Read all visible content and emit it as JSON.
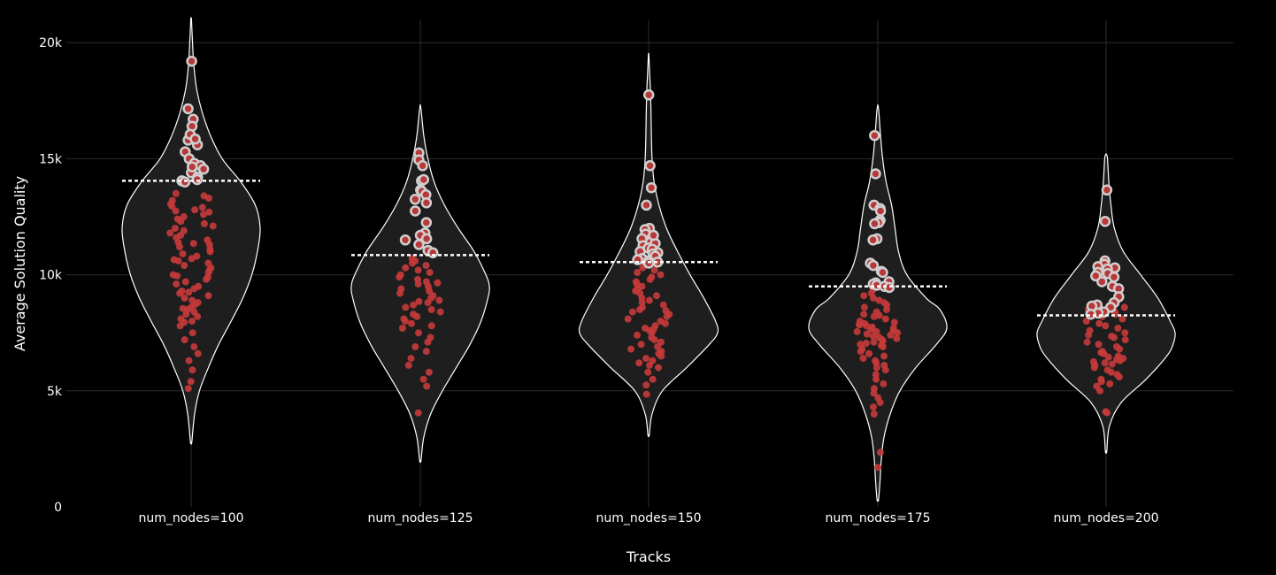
{
  "chart_data": {
    "type": "violin",
    "xlabel": "Tracks",
    "ylabel": "Average Solution Quality",
    "ylim": [
      0,
      21000
    ],
    "yticks": [
      {
        "value": 0,
        "label": "0"
      },
      {
        "value": 5000,
        "label": "5k"
      },
      {
        "value": 10000,
        "label": "10k"
      },
      {
        "value": 15000,
        "label": "15k"
      },
      {
        "value": 20000,
        "label": "20k"
      }
    ],
    "grid": true,
    "colors": {
      "background": "#000000",
      "violin_fill": "#1e1e1e",
      "violin_line": "#ffffff",
      "point": "#c73a3a",
      "point_outline": "#cfcfcf"
    },
    "categories": [
      "num_nodes=100",
      "num_nodes=125",
      "num_nodes=150",
      "num_nodes=175",
      "num_nodes=200"
    ],
    "violins": [
      {
        "category": "num_nodes=100",
        "threshold": 14050,
        "profile": [
          [
            2800,
            0.01
          ],
          [
            4000,
            0.05
          ],
          [
            5000,
            0.12
          ],
          [
            6000,
            0.25
          ],
          [
            7000,
            0.4
          ],
          [
            8000,
            0.58
          ],
          [
            9000,
            0.75
          ],
          [
            10000,
            0.88
          ],
          [
            11000,
            0.96
          ],
          [
            12000,
            1.0
          ],
          [
            13000,
            0.93
          ],
          [
            14000,
            0.72
          ],
          [
            15000,
            0.45
          ],
          [
            16000,
            0.28
          ],
          [
            17000,
            0.16
          ],
          [
            18000,
            0.08
          ],
          [
            19000,
            0.04
          ],
          [
            20000,
            0.02
          ],
          [
            21000,
            0.005
          ]
        ],
        "points_high": [
          19200,
          17150,
          16700,
          16400,
          15900,
          15800,
          15600,
          15300,
          15000,
          14800,
          14700,
          14550,
          14400,
          14200,
          14100,
          14050,
          14000,
          16050,
          15850,
          14650
        ],
        "points_low": [
          13500,
          13400,
          13300,
          13200,
          13050,
          12950,
          12900,
          12800,
          12700,
          12600,
          12500,
          12400,
          12300,
          12200,
          12100,
          12000,
          11900,
          11800,
          11700,
          11600,
          11500,
          11400,
          11300,
          11200,
          11100,
          11000,
          10900,
          10800,
          10700,
          10600,
          10500,
          10400,
          10300,
          10200,
          10100,
          10000,
          9900,
          9800,
          9700,
          9600,
          9500,
          9400,
          9300,
          9200,
          9100,
          9000,
          8900,
          8800,
          8700,
          8600,
          8500,
          8400,
          8300,
          8200,
          8100,
          8000,
          7800,
          7500,
          7200,
          6900,
          6600,
          6300,
          5900,
          5400,
          5100,
          12750,
          11350,
          10650,
          9950,
          9250,
          8550,
          7950
        ]
      },
      {
        "category": "num_nodes=125",
        "threshold": 10850,
        "profile": [
          [
            2000,
            0.01
          ],
          [
            3000,
            0.05
          ],
          [
            4000,
            0.15
          ],
          [
            5000,
            0.32
          ],
          [
            6000,
            0.52
          ],
          [
            7000,
            0.72
          ],
          [
            8000,
            0.88
          ],
          [
            9000,
            0.98
          ],
          [
            9500,
            1.0
          ],
          [
            10000,
            0.95
          ],
          [
            11000,
            0.78
          ],
          [
            12000,
            0.55
          ],
          [
            13000,
            0.35
          ],
          [
            14000,
            0.2
          ],
          [
            15000,
            0.11
          ],
          [
            16000,
            0.05
          ],
          [
            17000,
            0.015
          ],
          [
            17300,
            0.003
          ]
        ],
        "points_high": [
          15250,
          14950,
          14700,
          14050,
          14100,
          13650,
          13600,
          13450,
          13100,
          12750,
          12250,
          11800,
          11700,
          11550,
          11300,
          11050,
          10950,
          11500,
          13250
        ],
        "points_low": [
          10700,
          10600,
          10500,
          10400,
          10300,
          10200,
          10100,
          10000,
          9900,
          9800,
          9700,
          9600,
          9500,
          9400,
          9300,
          9200,
          9100,
          9000,
          8900,
          8800,
          8700,
          8600,
          8500,
          8400,
          8300,
          8200,
          8100,
          8000,
          7900,
          7800,
          7700,
          7500,
          7300,
          7100,
          6900,
          6700,
          6400,
          6100,
          5800,
          5500,
          5200,
          4050,
          9650,
          8850
        ]
      },
      {
        "category": "num_nodes=150",
        "threshold": 10550,
        "profile": [
          [
            3100,
            0.01
          ],
          [
            4000,
            0.05
          ],
          [
            5000,
            0.2
          ],
          [
            6000,
            0.55
          ],
          [
            7000,
            0.88
          ],
          [
            7500,
            1.0
          ],
          [
            8000,
            0.97
          ],
          [
            9000,
            0.8
          ],
          [
            10000,
            0.6
          ],
          [
            11000,
            0.42
          ],
          [
            12000,
            0.26
          ],
          [
            13000,
            0.15
          ],
          [
            14000,
            0.08
          ],
          [
            15000,
            0.05
          ],
          [
            16000,
            0.04
          ],
          [
            17000,
            0.035
          ],
          [
            18000,
            0.025
          ],
          [
            19000,
            0.01
          ],
          [
            19500,
            0.003
          ]
        ],
        "points_high": [
          17750,
          14700,
          13750,
          13000,
          12000,
          11950,
          11750,
          11600,
          11550,
          11400,
          11350,
          11250,
          11150,
          11100,
          11000,
          10950,
          10900,
          10800,
          10700,
          10650,
          10600,
          10550,
          10500,
          11700
        ],
        "points_low": [
          10400,
          10300,
          10200,
          10100,
          10000,
          9900,
          9800,
          9700,
          9600,
          9500,
          9400,
          9300,
          9200,
          9100,
          9000,
          8900,
          8800,
          8700,
          8600,
          8500,
          8400,
          8300,
          8200,
          8100,
          8000,
          7900,
          7800,
          7700,
          7600,
          7500,
          7400,
          7300,
          7200,
          7100,
          7000,
          6900,
          6800,
          6700,
          6600,
          6500,
          6400,
          6300,
          6200,
          6100,
          6000,
          5800,
          5500,
          5250,
          4850,
          8450,
          7650
        ]
      },
      {
        "category": "num_nodes=175",
        "threshold": 9500,
        "profile": [
          [
            300,
            0.01
          ],
          [
            1000,
            0.03
          ],
          [
            2000,
            0.05
          ],
          [
            3000,
            0.09
          ],
          [
            4000,
            0.18
          ],
          [
            5000,
            0.32
          ],
          [
            6000,
            0.55
          ],
          [
            7000,
            0.85
          ],
          [
            7700,
            1.0
          ],
          [
            8500,
            0.9
          ],
          [
            9000,
            0.7
          ],
          [
            10000,
            0.42
          ],
          [
            11000,
            0.3
          ],
          [
            12000,
            0.25
          ],
          [
            13000,
            0.2
          ],
          [
            14000,
            0.12
          ],
          [
            15000,
            0.07
          ],
          [
            16000,
            0.04
          ],
          [
            17000,
            0.015
          ],
          [
            17300,
            0.003
          ]
        ],
        "points_high": [
          16000,
          14350,
          13000,
          12850,
          12750,
          12350,
          12300,
          12250,
          12200,
          11550,
          11500,
          10500,
          10400,
          10150,
          10100,
          9700,
          9650,
          9600,
          9550,
          9500,
          9450
        ],
        "points_low": [
          9350,
          9200,
          9100,
          9000,
          8900,
          8800,
          8700,
          8600,
          8500,
          8400,
          8300,
          8200,
          8100,
          8000,
          7950,
          7900,
          7850,
          7800,
          7750,
          7700,
          7650,
          7600,
          7550,
          7500,
          7450,
          7400,
          7350,
          7300,
          7250,
          7200,
          7150,
          7100,
          7050,
          7000,
          6900,
          6800,
          6700,
          6600,
          6500,
          6400,
          6300,
          6200,
          6100,
          6000,
          5900,
          5700,
          5500,
          5300,
          5100,
          4900,
          4700,
          4500,
          4300,
          4000,
          2350,
          1700,
          8250,
          7850,
          7550,
          6950
        ]
      },
      {
        "category": "num_nodes=200",
        "threshold": 8250,
        "profile": [
          [
            2400,
            0.01
          ],
          [
            3500,
            0.05
          ],
          [
            4500,
            0.22
          ],
          [
            5500,
            0.58
          ],
          [
            6500,
            0.88
          ],
          [
            7000,
            0.97
          ],
          [
            7500,
            1.0
          ],
          [
            8000,
            0.93
          ],
          [
            9000,
            0.75
          ],
          [
            10000,
            0.5
          ],
          [
            11000,
            0.25
          ],
          [
            12000,
            0.12
          ],
          [
            13000,
            0.07
          ],
          [
            14000,
            0.04
          ],
          [
            15000,
            0.02
          ],
          [
            15200,
            0.003
          ]
        ],
        "points_high": [
          13650,
          12300,
          10600,
          10450,
          10350,
          10300,
          10250,
          10100,
          10050,
          9950,
          9900,
          9700,
          9500,
          9400,
          9050,
          8800,
          8700,
          8650,
          8600,
          8400,
          8350,
          8300
        ],
        "points_low": [
          8600,
          8500,
          8400,
          8300,
          8200,
          8100,
          8000,
          7900,
          7800,
          7700,
          7600,
          7500,
          7400,
          7300,
          7200,
          7100,
          7000,
          6900,
          6800,
          6700,
          6600,
          6500,
          6450,
          6400,
          6350,
          6300,
          6250,
          6200,
          6150,
          6100,
          6000,
          5900,
          5800,
          5700,
          5600,
          5500,
          5400,
          5300,
          5200,
          5000,
          4100,
          4050,
          7350,
          6650
        ]
      }
    ]
  }
}
